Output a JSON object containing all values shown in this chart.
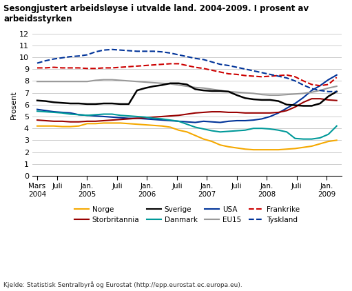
{
  "title": "Sesongjustert arbeidsløyse i utvalde land. 2004-2009. I prosent av arbeidsstyrken",
  "ylabel": "Prosent",
  "source": "Kjelde: Statistisk Sentralbyrå og Eurostat (http://epp.eurostat.ec.europa.eu).",
  "ylim": [
    0,
    12
  ],
  "yticks": [
    0,
    1,
    2,
    3,
    4,
    5,
    6,
    7,
    8,
    9,
    10,
    11,
    12
  ],
  "series": {
    "Norge": {
      "color": "#F5A800",
      "linestyle": "solid",
      "linewidth": 1.5,
      "values": [
        4.2,
        4.2,
        4.2,
        4.15,
        4.15,
        4.2,
        4.4,
        4.4,
        4.45,
        4.45,
        4.45,
        4.4,
        4.35,
        4.3,
        4.25,
        4.2,
        4.1,
        3.85,
        3.7,
        3.4,
        3.1,
        2.9,
        2.6,
        2.45,
        2.35,
        2.25,
        2.2,
        2.2,
        2.2,
        2.2,
        2.25,
        2.3,
        2.4,
        2.5,
        2.7,
        2.9,
        3.0
      ]
    },
    "USA": {
      "color": "#003399",
      "linestyle": "solid",
      "linewidth": 1.5,
      "values": [
        5.6,
        5.5,
        5.4,
        5.35,
        5.3,
        5.15,
        5.1,
        5.05,
        5.0,
        4.95,
        4.9,
        4.85,
        4.85,
        4.8,
        4.75,
        4.7,
        4.65,
        4.6,
        4.55,
        4.5,
        4.6,
        4.55,
        4.5,
        4.6,
        4.65,
        4.65,
        4.7,
        4.8,
        5.0,
        5.3,
        5.7,
        6.1,
        6.6,
        7.2,
        7.6,
        8.1,
        8.5
      ]
    },
    "Storbritannia": {
      "color": "#990000",
      "linestyle": "solid",
      "linewidth": 1.5,
      "values": [
        4.7,
        4.65,
        4.6,
        4.6,
        4.55,
        4.55,
        4.6,
        4.6,
        4.65,
        4.7,
        4.75,
        4.8,
        4.85,
        4.9,
        4.95,
        5.0,
        5.05,
        5.1,
        5.2,
        5.3,
        5.35,
        5.4,
        5.4,
        5.35,
        5.35,
        5.3,
        5.3,
        5.3,
        5.3,
        5.35,
        5.5,
        5.8,
        6.2,
        6.5,
        6.5,
        6.4,
        6.35
      ]
    },
    "EU15": {
      "color": "#999999",
      "linestyle": "solid",
      "linewidth": 1.5,
      "values": [
        7.95,
        7.95,
        7.95,
        7.95,
        7.95,
        7.95,
        7.95,
        8.05,
        8.1,
        8.1,
        8.05,
        8.0,
        7.95,
        7.9,
        7.85,
        7.8,
        7.75,
        7.65,
        7.55,
        7.45,
        7.4,
        7.3,
        7.2,
        7.1,
        7.05,
        7.0,
        6.95,
        6.85,
        6.8,
        6.8,
        6.85,
        6.9,
        6.95,
        7.05,
        7.2,
        7.4,
        7.55
      ]
    },
    "Sverige": {
      "color": "#000000",
      "linestyle": "solid",
      "linewidth": 1.8,
      "values": [
        6.35,
        6.3,
        6.2,
        6.15,
        6.1,
        6.1,
        6.05,
        6.05,
        6.1,
        6.1,
        6.05,
        6.05,
        7.2,
        7.4,
        7.55,
        7.65,
        7.8,
        7.8,
        7.7,
        7.3,
        7.2,
        7.15,
        7.15,
        7.1,
        6.8,
        6.55,
        6.45,
        6.4,
        6.4,
        6.3,
        6.0,
        5.95,
        5.9,
        5.9,
        6.1,
        6.7,
        7.1
      ]
    },
    "Frankrike": {
      "color": "#CC0000",
      "linestyle": "dashed",
      "linewidth": 1.5,
      "values": [
        9.1,
        9.1,
        9.15,
        9.1,
        9.1,
        9.1,
        9.05,
        9.05,
        9.1,
        9.1,
        9.15,
        9.2,
        9.25,
        9.3,
        9.35,
        9.4,
        9.45,
        9.45,
        9.3,
        9.15,
        9.05,
        8.9,
        8.75,
        8.6,
        8.55,
        8.45,
        8.4,
        8.35,
        8.4,
        8.45,
        8.5,
        8.35,
        8.0,
        7.7,
        7.6,
        7.7,
        8.3
      ]
    },
    "Danmark": {
      "color": "#009999",
      "linestyle": "solid",
      "linewidth": 1.5,
      "values": [
        5.45,
        5.4,
        5.35,
        5.3,
        5.2,
        5.15,
        5.1,
        5.15,
        5.2,
        5.2,
        5.1,
        5.05,
        5.0,
        4.95,
        4.85,
        4.8,
        4.7,
        4.6,
        4.35,
        4.1,
        3.95,
        3.8,
        3.7,
        3.75,
        3.8,
        3.85,
        4.0,
        4.0,
        3.95,
        3.85,
        3.7,
        3.15,
        3.1,
        3.1,
        3.2,
        3.5,
        4.2
      ]
    },
    "Tyskland": {
      "color": "#003399",
      "linestyle": "dashed",
      "linewidth": 1.5,
      "values": [
        9.5,
        9.7,
        9.85,
        9.95,
        10.05,
        10.1,
        10.2,
        10.45,
        10.6,
        10.65,
        10.6,
        10.55,
        10.5,
        10.5,
        10.5,
        10.45,
        10.35,
        10.2,
        10.05,
        9.9,
        9.8,
        9.6,
        9.4,
        9.3,
        9.15,
        9.0,
        8.85,
        8.7,
        8.55,
        8.4,
        8.25,
        8.0,
        7.65,
        7.35,
        7.2,
        7.1,
        7.1
      ]
    }
  },
  "x_tick_labels": [
    "Mars\n2004",
    "Juli",
    "Jan.\n2005",
    "Juli",
    "Jan.\n2006",
    "Juli",
    "Jan.\n2007",
    "Juli",
    "Jan.\n2008",
    "Juli",
    "Jan.\n2009"
  ],
  "x_tick_positions": [
    0,
    4,
    10,
    16,
    22,
    28,
    34,
    40,
    46,
    52,
    58
  ],
  "n_points": 37,
  "background_color": "#ffffff",
  "grid_color": "#cccccc"
}
